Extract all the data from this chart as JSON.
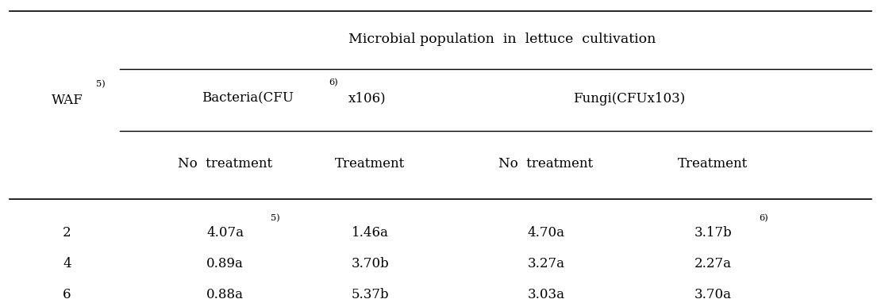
{
  "title": "Microbial population  in  lettuce  cultivation",
  "waf_label": "WAF",
  "waf_super": "5)",
  "bacteria_label_pre": "Bacteria(CFU",
  "bacteria_super": "6)",
  "bacteria_label_post": "x106)",
  "fungi_label": "Fungi(CFUx103)",
  "sub_labels": [
    "No  treatment",
    "Treatment",
    "No  treatment",
    "Treatment"
  ],
  "data_rows": [
    [
      "2",
      "4.07a",
      "5)",
      "1.46a",
      "4.70a",
      "3.17b",
      "6)"
    ],
    [
      "4",
      "0.89a",
      "",
      "3.70b",
      "3.27a",
      "2.27a",
      ""
    ],
    [
      "6",
      "0.88a",
      "",
      "5.37b",
      "3.03a",
      "3.70a",
      ""
    ]
  ],
  "bg_color": "#ffffff",
  "text_color": "#000000",
  "font_size": 12.0,
  "title_font_size": 12.5
}
